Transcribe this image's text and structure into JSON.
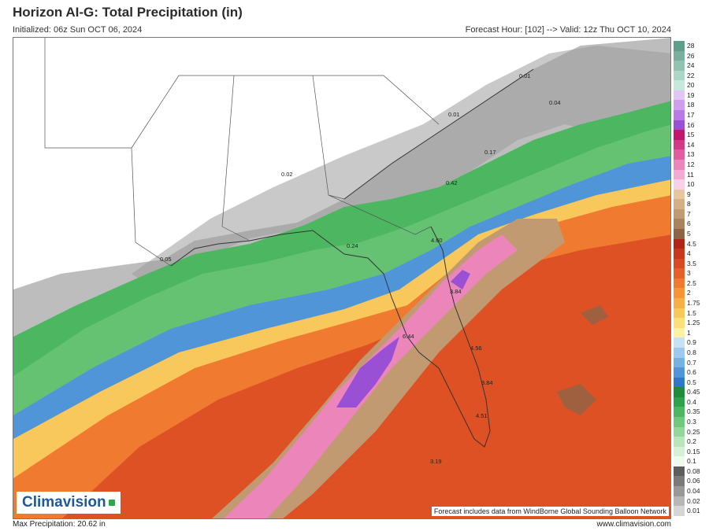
{
  "header": {
    "title": "Horizon AI-G: Total Precipitation (in)",
    "initialized": "Initialized: 06z Sun OCT 06, 2024",
    "valid": "Forecast Hour: [102] --> Valid: 12z Thu OCT 10, 2024"
  },
  "footer": {
    "max_precip": "Max Precipitation: 20.62 in",
    "website": "www.climavision.com",
    "credit": "Forecast includes data from WindBorne Global Sounding Balloon Network",
    "logo": "Climavision"
  },
  "point_labels": [
    "0.01",
    "0.04",
    "0.01",
    "0.17",
    "0.02",
    "0.42",
    "4.60",
    "0.24",
    "0.05",
    "3.84",
    "6.44",
    "4.56",
    "3.84",
    "4.51",
    "3.19"
  ],
  "legend": [
    {
      "label": "28",
      "color": "#5f9e8a"
    },
    {
      "label": "26",
      "color": "#78b09d"
    },
    {
      "label": "24",
      "color": "#92c3b1"
    },
    {
      "label": "22",
      "color": "#acd6c6"
    },
    {
      "label": "20",
      "color": "#c8e8dc"
    },
    {
      "label": "19",
      "color": "#e2c6f5"
    },
    {
      "label": "18",
      "color": "#cf9eef"
    },
    {
      "label": "17",
      "color": "#b87ae6"
    },
    {
      "label": "16",
      "color": "#9a50d4"
    },
    {
      "label": "15",
      "color": "#c2186b"
    },
    {
      "label": "14",
      "color": "#d23a86"
    },
    {
      "label": "13",
      "color": "#e05da0"
    },
    {
      "label": "12",
      "color": "#ec85ba"
    },
    {
      "label": "11",
      "color": "#f4abd1"
    },
    {
      "label": "10",
      "color": "#f9d1e6"
    },
    {
      "label": "9",
      "color": "#e6c79f"
    },
    {
      "label": "8",
      "color": "#d5b086"
    },
    {
      "label": "7",
      "color": "#c29a72"
    },
    {
      "label": "6",
      "color": "#a9825e"
    },
    {
      "label": "5",
      "color": "#8e6446"
    },
    {
      "label": "4.5",
      "color": "#b02618"
    },
    {
      "label": "4",
      "color": "#c8381c"
    },
    {
      "label": "3.5",
      "color": "#da4a22"
    },
    {
      "label": "3",
      "color": "#e6602a"
    },
    {
      "label": "2.5",
      "color": "#ef7a30"
    },
    {
      "label": "2",
      "color": "#f59536"
    },
    {
      "label": "1.75",
      "color": "#f8b046"
    },
    {
      "label": "1.5",
      "color": "#f9c85c"
    },
    {
      "label": "1.25",
      "color": "#fbe079"
    },
    {
      "label": "1",
      "color": "#fdf1a6"
    },
    {
      "label": "0.9",
      "color": "#c6e2f4"
    },
    {
      "label": "0.8",
      "color": "#9cc9ec"
    },
    {
      "label": "0.7",
      "color": "#76b1e3"
    },
    {
      "label": "0.6",
      "color": "#4f95d8"
    },
    {
      "label": "0.5",
      "color": "#2f78c4"
    },
    {
      "label": "0.45",
      "color": "#1e8c3a"
    },
    {
      "label": "0.4",
      "color": "#2fa14a"
    },
    {
      "label": "0.35",
      "color": "#4cb660"
    },
    {
      "label": "0.3",
      "color": "#6fc87b"
    },
    {
      "label": "0.25",
      "color": "#93d89a"
    },
    {
      "label": "0.2",
      "color": "#b6e6b9"
    },
    {
      "label": "0.15",
      "color": "#d6f2d6"
    },
    {
      "label": "0.1",
      "color": "#eefaee"
    },
    {
      "label": "0.08",
      "color": "#5d5d5d"
    },
    {
      "label": "0.06",
      "color": "#7a7a7a"
    },
    {
      "label": "0.04",
      "color": "#989898"
    },
    {
      "label": "0.02",
      "color": "#b7b7b7"
    },
    {
      "label": "0.01",
      "color": "#d6d6d6"
    }
  ]
}
